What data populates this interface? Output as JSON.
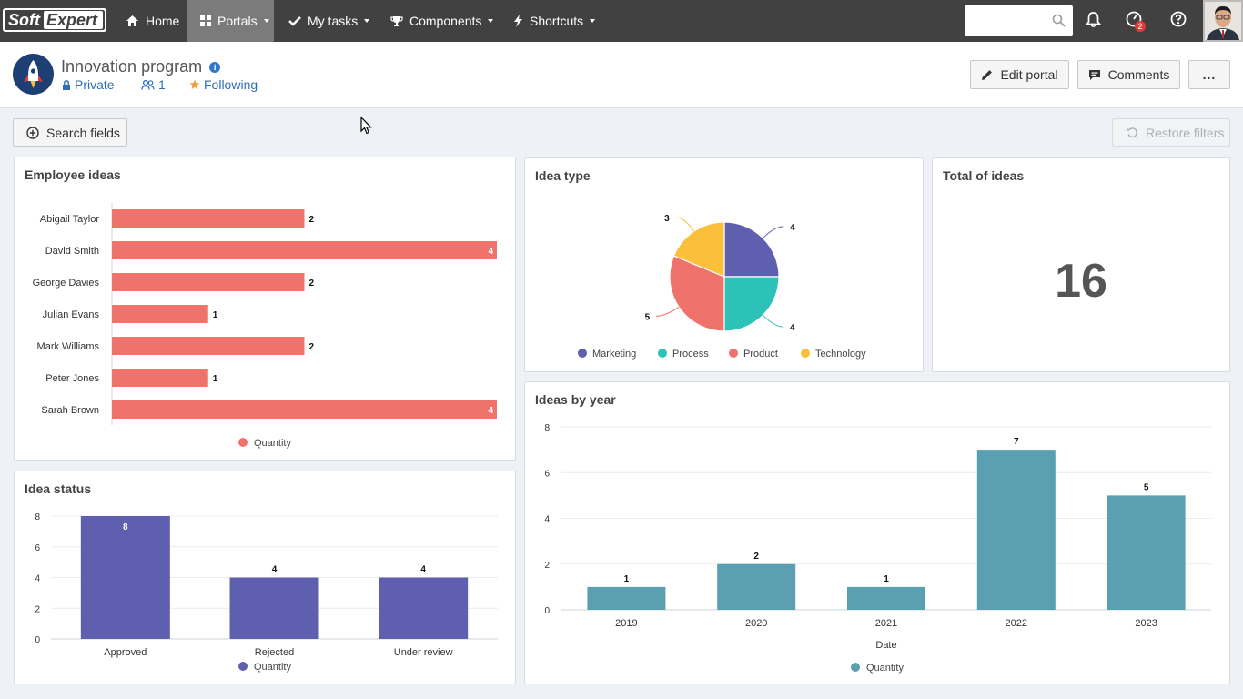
{
  "nav": {
    "logo_soft": "Soft",
    "logo_expert": "Expert",
    "items": [
      {
        "label": "Home",
        "icon": "home-icon"
      },
      {
        "label": "Portals",
        "icon": "grid-icon",
        "active": true
      },
      {
        "label": "My tasks",
        "icon": "check-icon"
      },
      {
        "label": "Components",
        "icon": "trophy-icon"
      },
      {
        "label": "Shortcuts",
        "icon": "bolt-icon"
      }
    ],
    "search": {
      "value": "",
      "placeholder": ""
    },
    "notifications_badge": "2"
  },
  "header": {
    "title": "Innovation program",
    "privacy": "Private",
    "members": "1",
    "following": "Following",
    "edit_portal": "Edit portal",
    "comments": "Comments",
    "more": "..."
  },
  "toolbar": {
    "search_fields": "Search fields",
    "restore_filters": "Restore filters"
  },
  "colors": {
    "salmon": "#f0736b",
    "purple": "#5f5fb0",
    "teal": "#5aa0b0",
    "turquoise": "#2cc2b8",
    "yellow": "#fbbf3a",
    "link": "#2c6fb6"
  },
  "panels": {
    "employee_ideas": {
      "title": "Employee ideas"
    },
    "idea_type": {
      "title": "Idea type"
    },
    "total_ideas": {
      "title": "Total of ideas",
      "value": "16"
    },
    "idea_status": {
      "title": "Idea status"
    },
    "ideas_by_year": {
      "title": "Ideas by year"
    }
  },
  "chart_data": [
    {
      "id": "employee_ideas",
      "type": "bar",
      "orientation": "horizontal",
      "title": "Employee ideas",
      "categories": [
        "Abigail Taylor",
        "David Smith",
        "George Davies",
        "Julian Evans",
        "Mark Williams",
        "Peter Jones",
        "Sarah Brown"
      ],
      "series": [
        {
          "name": "Quantity",
          "values": [
            2,
            4,
            2,
            1,
            2,
            1,
            4
          ],
          "color": "#f0736b"
        }
      ],
      "xlim": [
        0,
        4
      ],
      "legend": "bottom",
      "grid": false
    },
    {
      "id": "idea_type",
      "type": "pie",
      "title": "Idea type",
      "categories": [
        "Marketing",
        "Process",
        "Product",
        "Technology"
      ],
      "values": [
        4,
        4,
        5,
        3
      ],
      "colors": [
        "#5f5fb0",
        "#2cc2b8",
        "#f0736b",
        "#fbbf3a"
      ],
      "legend": "bottom"
    },
    {
      "id": "idea_status",
      "type": "bar",
      "title": "Idea status",
      "categories": [
        "Approved",
        "Rejected",
        "Under review"
      ],
      "series": [
        {
          "name": "Quantity",
          "values": [
            8,
            4,
            4
          ],
          "color": "#5f5fb0"
        }
      ],
      "ylim": [
        0,
        8
      ],
      "yticks": [
        0,
        2,
        4,
        6,
        8
      ],
      "legend": "bottom",
      "grid": true
    },
    {
      "id": "ideas_by_year",
      "type": "bar",
      "title": "Ideas by year",
      "categories": [
        "2019",
        "2020",
        "2021",
        "2022",
        "2023"
      ],
      "series": [
        {
          "name": "Quantity",
          "values": [
            1,
            2,
            1,
            7,
            5
          ],
          "color": "#5aa0b0"
        }
      ],
      "xlabel": "Date",
      "ylim": [
        0,
        8
      ],
      "yticks": [
        0,
        2,
        4,
        6,
        8
      ],
      "legend": "bottom",
      "grid": true
    }
  ]
}
